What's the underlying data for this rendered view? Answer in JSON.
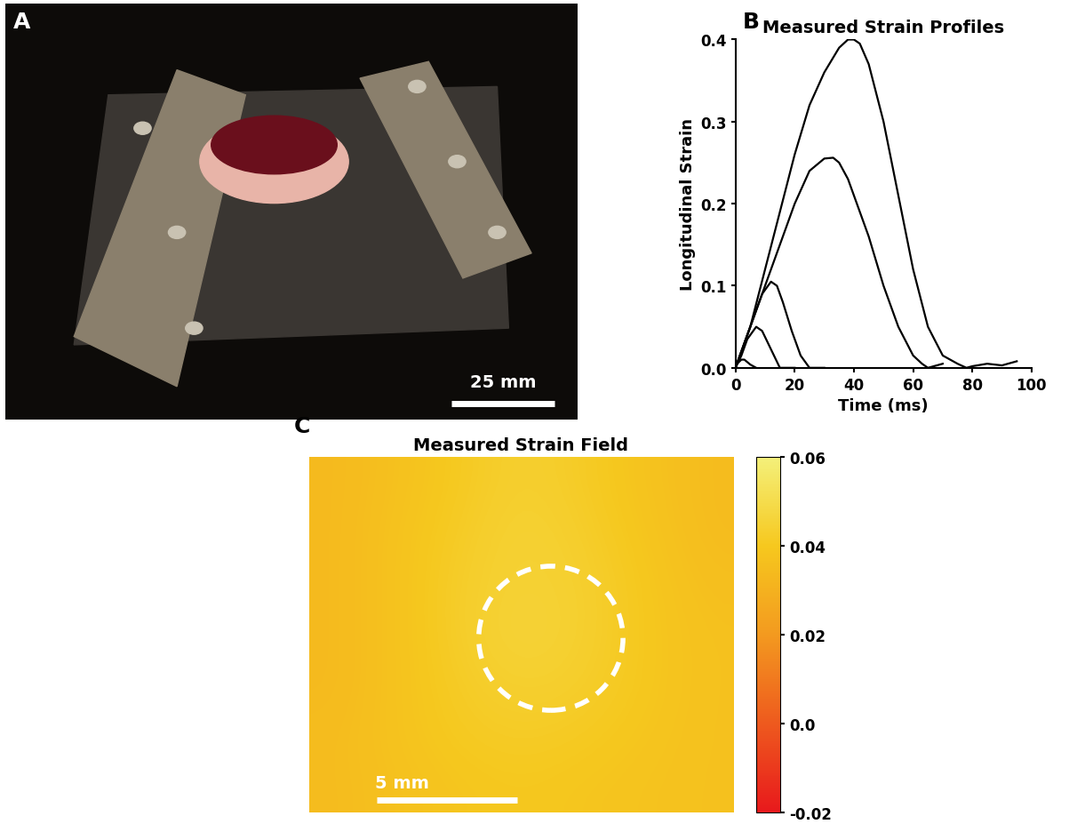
{
  "chart_data": [
    {
      "type": "image",
      "panel_label": "A",
      "scale_bar": "25 mm",
      "tick_labels": false
    },
    {
      "type": "line",
      "panel_label": "B",
      "title": "Measured Strain Profiles",
      "x_label": "Time (ms)",
      "y_label": "Longitudinal Strain",
      "xlim": [
        0,
        100
      ],
      "xticks": [
        0,
        20,
        40,
        60,
        80,
        100
      ],
      "ylim": [
        0,
        0.4
      ],
      "yticks": [
        0.0,
        0.1,
        0.2,
        0.3,
        0.4
      ],
      "grid": false,
      "series": [
        {
          "color": "#000000",
          "x": [
            0,
            2,
            5,
            10,
            15,
            20,
            25,
            30,
            35,
            38,
            40,
            42,
            45,
            50,
            55,
            60,
            65,
            70,
            75,
            78,
            80,
            85,
            90,
            95
          ],
          "values": [
            0,
            0.02,
            0.05,
            0.12,
            0.19,
            0.26,
            0.32,
            0.36,
            0.39,
            0.4,
            0.4,
            0.395,
            0.37,
            0.3,
            0.21,
            0.12,
            0.05,
            0.015,
            0.005,
            0,
            0.002,
            0.005,
            0.003,
            0.008
          ]
        },
        {
          "color": "#000000",
          "x": [
            0,
            2,
            5,
            10,
            15,
            20,
            25,
            30,
            33,
            35,
            38,
            40,
            45,
            50,
            55,
            60,
            63,
            65,
            70
          ],
          "values": [
            0,
            0.02,
            0.05,
            0.1,
            0.15,
            0.2,
            0.24,
            0.255,
            0.256,
            0.25,
            0.23,
            0.21,
            0.16,
            0.1,
            0.05,
            0.015,
            0.005,
            0,
            0.005
          ]
        },
        {
          "color": "#000000",
          "x": [
            0,
            3,
            6,
            9,
            12,
            14,
            16,
            19,
            22,
            25,
            30
          ],
          "values": [
            0,
            0.03,
            0.06,
            0.09,
            0.105,
            0.1,
            0.08,
            0.045,
            0.015,
            0,
            0
          ]
        },
        {
          "color": "#000000",
          "x": [
            0,
            2,
            4,
            7,
            9,
            11,
            13,
            15,
            20
          ],
          "values": [
            0,
            0.015,
            0.035,
            0.05,
            0.045,
            0.03,
            0.015,
            0,
            0
          ]
        },
        {
          "color": "#000000",
          "x": [
            0,
            2,
            3,
            5,
            7
          ],
          "values": [
            0.003,
            0.01,
            0.01,
            0.004,
            0
          ]
        }
      ]
    },
    {
      "type": "heatmap",
      "panel_label": "C",
      "title": "Measured Strain Field",
      "scale_bar": "5 mm",
      "tick_labels": false,
      "cells": [
        [
          0.034,
          0.037,
          0.041,
          0.044,
          0.042,
          0.038,
          0.035
        ],
        [
          0.034,
          0.038,
          0.042,
          0.045,
          0.043,
          0.039,
          0.035
        ],
        [
          0.034,
          0.038,
          0.043,
          0.045,
          0.044,
          0.04,
          0.036
        ],
        [
          0.034,
          0.038,
          0.043,
          0.046,
          0.044,
          0.04,
          0.037
        ],
        [
          0.034,
          0.038,
          0.042,
          0.044,
          0.043,
          0.04,
          0.037
        ],
        [
          0.035,
          0.038,
          0.041,
          0.042,
          0.041,
          0.039,
          0.037
        ],
        [
          0.035,
          0.037,
          0.039,
          0.04,
          0.039,
          0.038,
          0.037
        ]
      ],
      "colorbar_range": [
        -0.02,
        0.06
      ],
      "colorbar_ticks": [
        0.06,
        0.04,
        0.02,
        {
          "value": 0,
          "label": "0.0"
        },
        -0.02
      ]
    }
  ]
}
